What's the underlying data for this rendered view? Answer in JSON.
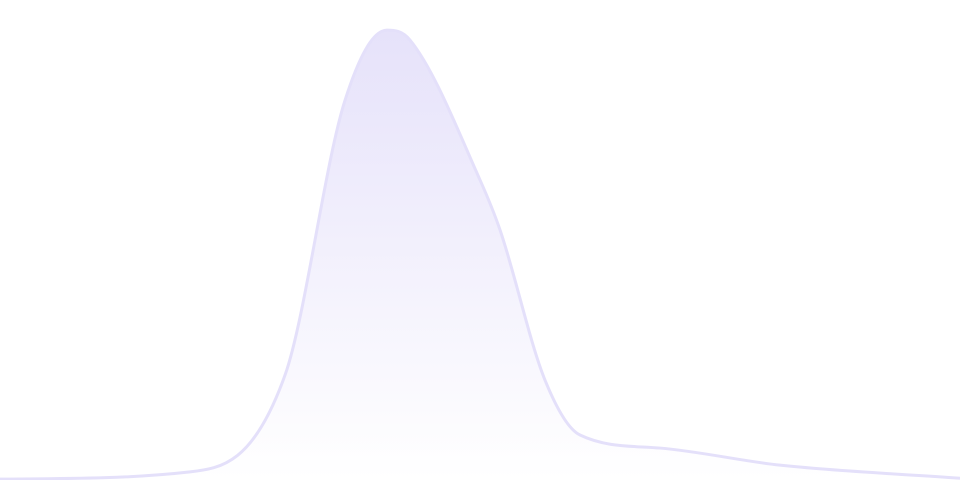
{
  "chart_data": {
    "type": "area",
    "title": "",
    "xlabel": "",
    "ylabel": "",
    "grid": false,
    "legend": "none",
    "x": [
      0,
      9.5,
      14.25,
      17.25,
      19.35,
      20.5,
      24,
      25,
      27.25,
      29,
      33,
      39,
      48
    ],
    "values": [
      0.2,
      1.8,
      23.3,
      84.4,
      100,
      97.8,
      66.7,
      55.6,
      22.2,
      10,
      7.1,
      3.3,
      0.4
    ],
    "xlim": [
      0,
      48
    ],
    "ylim": [
      0,
      106.7
    ],
    "colors": {
      "line": "#e4e0fa",
      "fill_top": "#e6e2fa",
      "fill_bottom": "#ffffff"
    }
  }
}
